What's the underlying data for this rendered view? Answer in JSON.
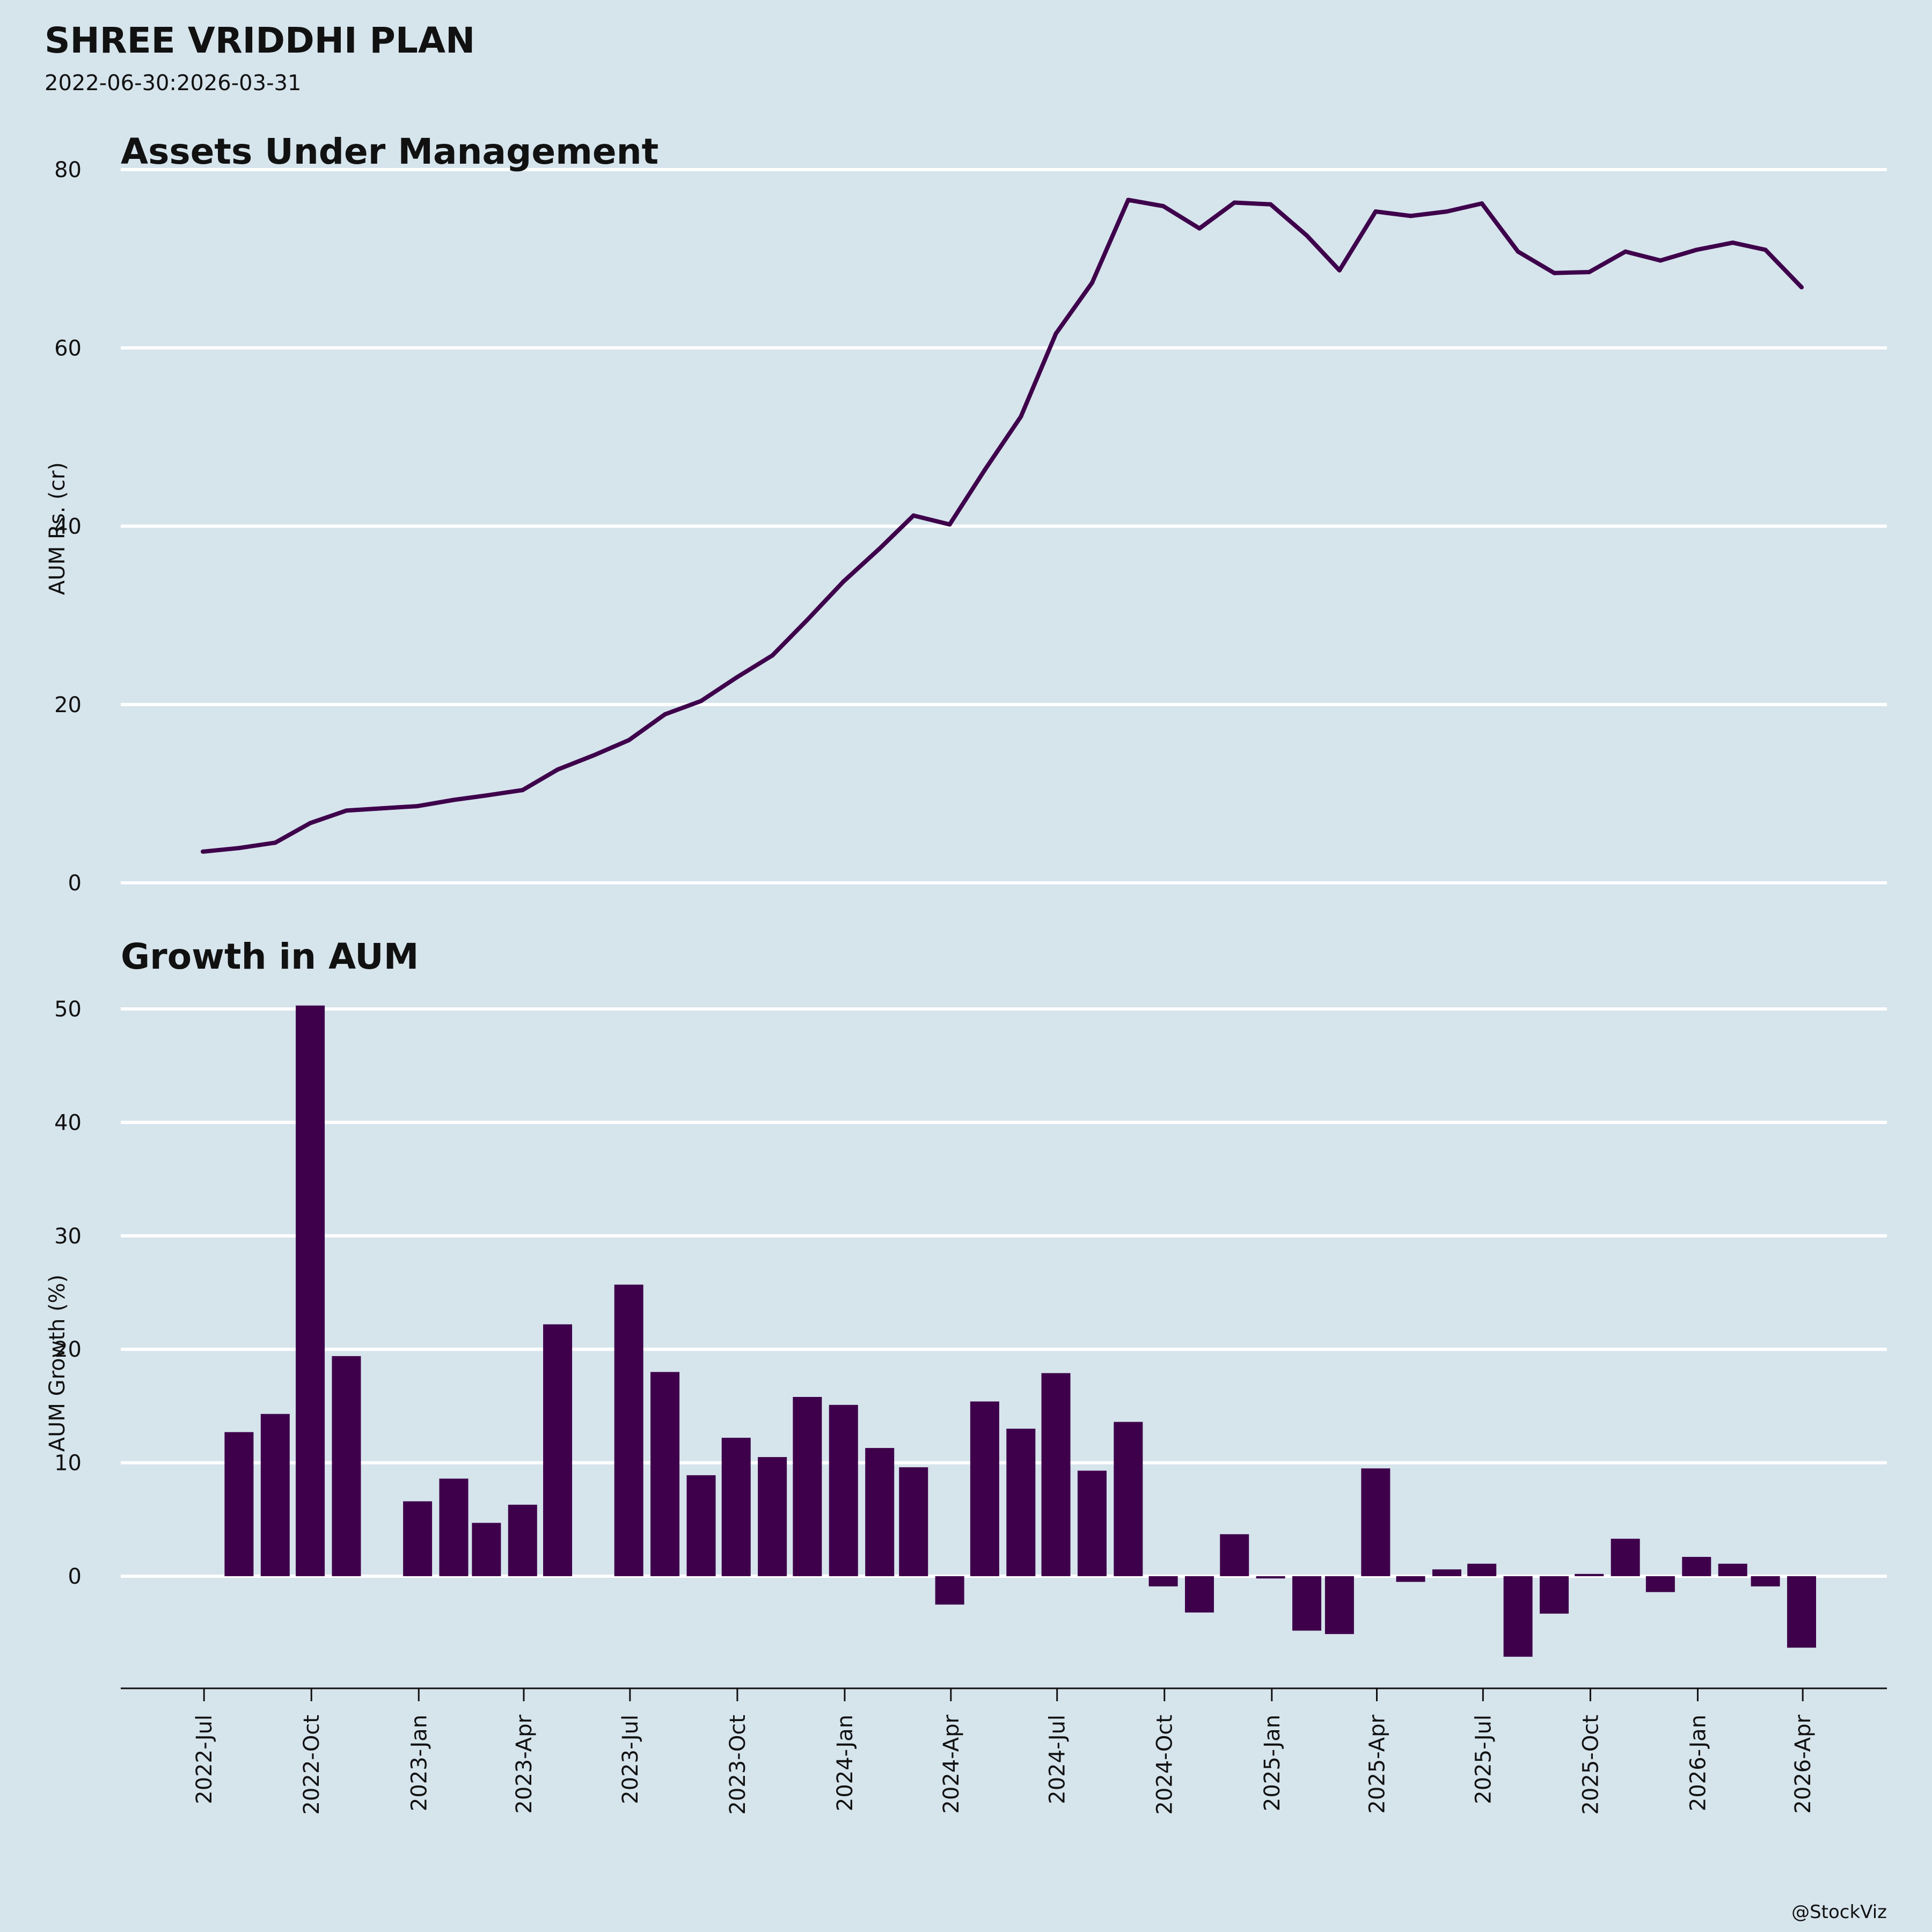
{
  "title": "SHREE VRIDDHI PLAN",
  "subtitle": "2022-06-30:2026-03-31",
  "credit": "@StockViz",
  "colors": {
    "background": "#d6e4ec",
    "series": "#3e004b",
    "grid": "#ffffff",
    "axis": "#111111"
  },
  "chart_data": [
    {
      "type": "line",
      "title": "Assets Under Management",
      "ylabel": "AUM Rs. (cr)",
      "xlabel": "",
      "ylim": [
        0,
        80
      ],
      "yticks": [
        0,
        20,
        40,
        60,
        80
      ],
      "grid": true,
      "x": [
        "2022-06-30",
        "2022-07-31",
        "2022-08-31",
        "2022-09-30",
        "2022-10-31",
        "2022-11-30",
        "2022-12-31",
        "2023-01-31",
        "2023-02-28",
        "2023-03-31",
        "2023-04-30",
        "2023-05-31",
        "2023-06-30",
        "2023-07-31",
        "2023-08-31",
        "2023-09-30",
        "2023-10-31",
        "2023-11-30",
        "2023-12-31",
        "2024-01-31",
        "2024-02-29",
        "2024-03-31",
        "2024-04-30",
        "2024-05-31",
        "2024-06-30",
        "2024-07-31",
        "2024-08-31",
        "2024-09-30",
        "2024-10-31",
        "2024-11-30",
        "2024-12-31",
        "2025-01-31",
        "2025-02-28",
        "2025-03-31",
        "2025-04-30",
        "2025-05-31",
        "2025-06-30",
        "2025-07-31",
        "2025-08-31",
        "2025-09-30",
        "2025-10-31",
        "2025-11-30",
        "2025-12-31",
        "2026-01-31",
        "2026-02-28",
        "2026-03-31"
      ],
      "series": [
        {
          "values": [
            3.5,
            3.9,
            4.5,
            6.7,
            8.1,
            8.35,
            8.6,
            9.3,
            9.8,
            10.4,
            12.7,
            14.3,
            16.0,
            18.9,
            20.4,
            23.0,
            25.5,
            29.5,
            33.8,
            37.5,
            41.2,
            40.2,
            46.3,
            52.3,
            61.6,
            67.3,
            76.6,
            75.9,
            73.4,
            76.3,
            76.1,
            72.6,
            68.7,
            75.3,
            74.8,
            75.3,
            76.2,
            70.8,
            68.4,
            68.5,
            70.8,
            69.8,
            71.0,
            71.8,
            71.0,
            66.8
          ]
        }
      ]
    },
    {
      "type": "bar",
      "title": "Growth in AUM",
      "ylabel": "AUM Growth (%)",
      "xlabel": "",
      "ylim": [
        -10,
        50
      ],
      "yticks": [
        0,
        10,
        20,
        30,
        40,
        50
      ],
      "grid": true,
      "x": [
        "2022-06-30",
        "2022-07-31",
        "2022-08-31",
        "2022-09-30",
        "2022-10-31",
        "2022-11-30",
        "2022-12-31",
        "2023-01-31",
        "2023-02-28",
        "2023-03-31",
        "2023-04-30",
        "2023-05-31",
        "2023-06-30",
        "2023-07-31",
        "2023-08-31",
        "2023-09-30",
        "2023-10-31",
        "2023-11-30",
        "2023-12-31",
        "2024-01-31",
        "2024-02-29",
        "2024-03-31",
        "2024-04-30",
        "2024-05-31",
        "2024-06-30",
        "2024-07-31",
        "2024-08-31",
        "2024-09-30",
        "2024-10-31",
        "2024-11-30",
        "2024-12-31",
        "2025-01-31",
        "2025-02-28",
        "2025-03-31",
        "2025-04-30",
        "2025-05-31",
        "2025-06-30",
        "2025-07-31",
        "2025-08-31",
        "2025-09-30",
        "2025-10-31",
        "2025-11-30",
        "2025-12-31",
        "2026-01-31",
        "2026-02-28",
        "2026-03-31"
      ],
      "series": [
        {
          "values": [
            null,
            12.7,
            14.3,
            50.3,
            19.4,
            0,
            6.6,
            8.6,
            4.7,
            6.3,
            22.2,
            0,
            25.7,
            18.0,
            8.9,
            12.2,
            10.5,
            15.8,
            15.1,
            11.3,
            9.6,
            -2.5,
            15.4,
            13.0,
            17.9,
            9.3,
            13.6,
            -0.9,
            -3.2,
            3.7,
            -0.2,
            -4.8,
            -5.1,
            9.5,
            -0.5,
            0.6,
            1.1,
            -7.1,
            -3.3,
            0.2,
            3.3,
            -1.4,
            1.7,
            1.1,
            -0.9,
            -6.3
          ]
        }
      ],
      "xticks": [
        "2022-Jul",
        "2022-Oct",
        "2023-Jan",
        "2023-Apr",
        "2023-Jul",
        "2023-Oct",
        "2024-Jan",
        "2024-Apr",
        "2024-Jul",
        "2024-Oct",
        "2025-Jan",
        "2025-Apr",
        "2025-Jul",
        "2025-Oct",
        "2026-Jan",
        "2026-Apr"
      ],
      "xtick_dates": [
        "2022-07-01",
        "2022-10-01",
        "2023-01-01",
        "2023-04-01",
        "2023-07-01",
        "2023-10-01",
        "2024-01-01",
        "2024-04-01",
        "2024-07-01",
        "2024-10-01",
        "2025-01-01",
        "2025-04-01",
        "2025-07-01",
        "2025-10-01",
        "2026-01-01",
        "2026-04-01"
      ]
    }
  ]
}
